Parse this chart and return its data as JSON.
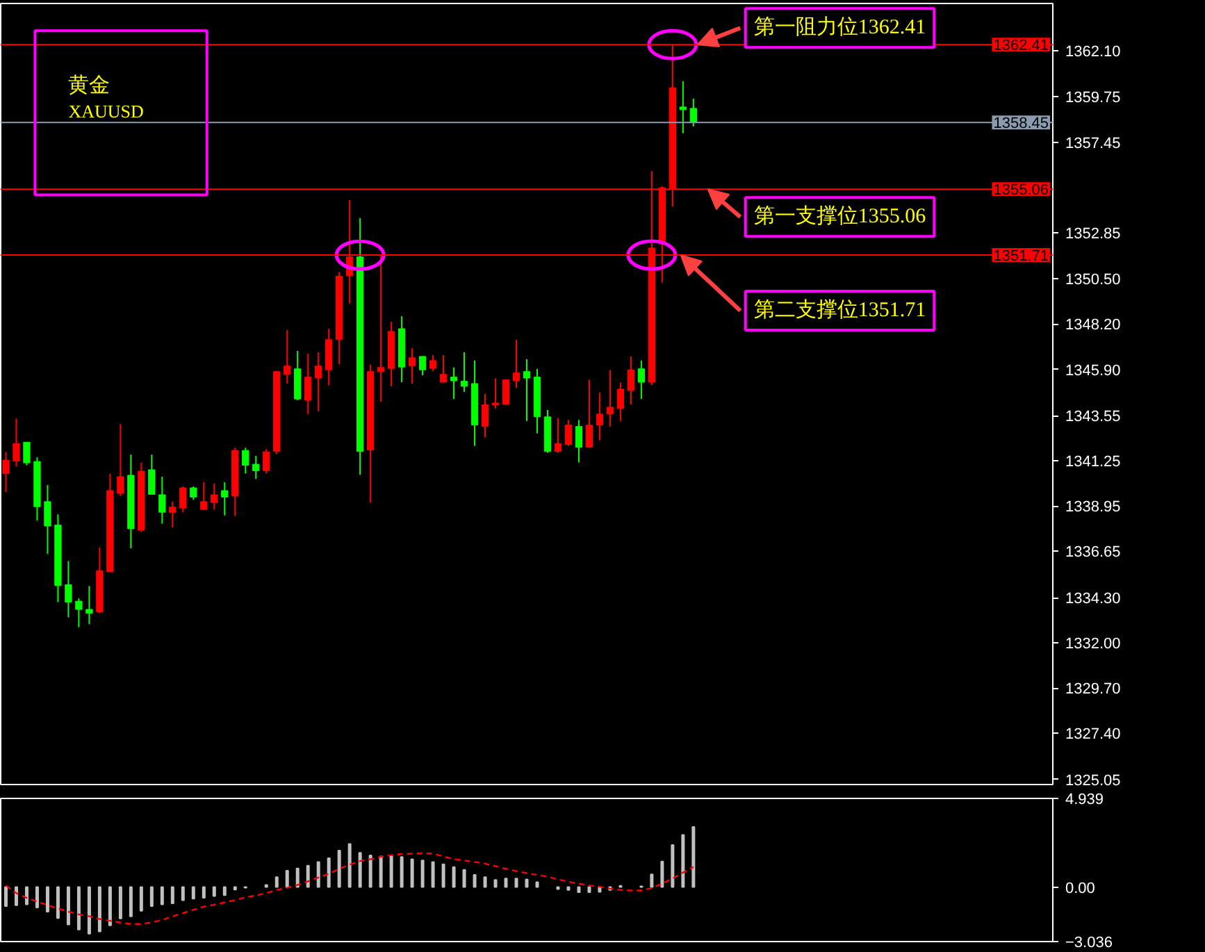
{
  "chart_data": [
    {
      "type": "candlestick",
      "title": "黄金",
      "subtitle": "XAUUSD",
      "categories": [
        null,
        null,
        null,
        null,
        null,
        null,
        null,
        null,
        null,
        null,
        null,
        null,
        null,
        null,
        null,
        null,
        null,
        null,
        null,
        null,
        null,
        null,
        null,
        null,
        null,
        null,
        null,
        null,
        null,
        null,
        null,
        null,
        null,
        null,
        null,
        null,
        null,
        null,
        null,
        null,
        null,
        null,
        null,
        null,
        null,
        null,
        null,
        null,
        null,
        null,
        null,
        null,
        null,
        null,
        null,
        null,
        null,
        null,
        null,
        null,
        null,
        null,
        null,
        null,
        null,
        null,
        null,
        null,
        null,
        null,
        null,
        null,
        null,
        null,
        null,
        null,
        null,
        null,
        null,
        null,
        null,
        null,
        null,
        null,
        null,
        null,
        null,
        null,
        null,
        null,
        null,
        null,
        null,
        null,
        null,
        null,
        null,
        null,
        null,
        null,
        null
      ],
      "ohlc": [
        [
          1340.61,
          1341.71,
          1339.67,
          1341.29
        ],
        [
          1341.24,
          1343.4,
          1340.96,
          1342.13
        ],
        [
          1342.2,
          1342.2,
          1341.03,
          1341.15
        ],
        [
          1341.22,
          1341.43,
          1338.22,
          1338.92
        ],
        [
          1339.18,
          1340.02,
          1336.53,
          1337.94
        ],
        [
          1337.99,
          1338.53,
          1334.07,
          1334.91
        ],
        [
          1334.96,
          1336.16,
          1333.3,
          1334.07
        ],
        [
          1334.12,
          1334.26,
          1332.8,
          1333.7
        ],
        [
          1333.7,
          1334.89,
          1332.95,
          1333.51
        ],
        [
          1333.58,
          1336.86,
          1333.51,
          1335.67
        ],
        [
          1335.62,
          1340.59,
          1335.62,
          1339.74
        ],
        [
          1339.6,
          1343.12,
          1339.46,
          1340.45
        ],
        [
          1340.52,
          1341.57,
          1336.81,
          1337.8
        ],
        [
          1337.73,
          1341.15,
          1337.63,
          1340.73
        ],
        [
          1340.8,
          1341.57,
          1339.55,
          1339.55
        ],
        [
          1339.53,
          1340.45,
          1338.06,
          1338.64
        ],
        [
          1338.62,
          1339.18,
          1337.87,
          1338.9
        ],
        [
          1338.85,
          1339.95,
          1338.64,
          1339.88
        ],
        [
          1339.88,
          1339.95,
          1339.27,
          1339.41
        ],
        [
          1338.78,
          1340.17,
          1338.78,
          1339.18
        ],
        [
          1339.13,
          1340.09,
          1338.78,
          1339.53
        ],
        [
          1339.74,
          1340.17,
          1338.48,
          1339.41
        ],
        [
          1339.46,
          1341.92,
          1338.45,
          1341.78
        ],
        [
          1341.78,
          1341.92,
          1340.61,
          1341.03
        ],
        [
          1341.08,
          1341.5,
          1340.33,
          1340.75
        ],
        [
          1340.75,
          1341.85,
          1340.61,
          1341.71
        ],
        [
          1341.73,
          1345.79,
          1341.59,
          1345.79
        ],
        [
          1345.65,
          1347.9,
          1345.18,
          1346.07
        ],
        [
          1345.93,
          1346.84,
          1344.33,
          1344.4
        ],
        [
          1344.33,
          1346.7,
          1343.63,
          1345.51
        ],
        [
          1345.46,
          1346.77,
          1343.77,
          1346.07
        ],
        [
          1345.88,
          1347.97,
          1345.09,
          1347.41
        ],
        [
          1347.43,
          1350.85,
          1346.16,
          1350.64
        ],
        [
          1350.66,
          1354.51,
          1349.25,
          1351.62
        ],
        [
          1351.62,
          1353.59,
          1340.54,
          1341.73
        ],
        [
          1341.8,
          1346.14,
          1339.13,
          1345.79
        ],
        [
          1345.79,
          1351.69,
          1344.26,
          1346.0
        ],
        [
          1345.95,
          1348.32,
          1345.04,
          1347.83
        ],
        [
          1347.97,
          1348.6,
          1345.25,
          1346.02
        ],
        [
          1346.09,
          1346.98,
          1345.18,
          1346.49
        ],
        [
          1346.56,
          1346.56,
          1345.6,
          1345.88
        ],
        [
          1345.95,
          1346.63,
          1345.81,
          1346.35
        ],
        [
          1345.25,
          1346.63,
          1345.25,
          1345.65
        ],
        [
          1345.51,
          1346.0,
          1344.4,
          1345.32
        ],
        [
          1345.3,
          1346.77,
          1344.76,
          1345.04
        ],
        [
          1345.18,
          1346.35,
          1342.01,
          1343.07
        ],
        [
          1343.0,
          1344.66,
          1342.44,
          1344.1
        ],
        [
          1344.1,
          1345.44,
          1343.91,
          1344.19
        ],
        [
          1344.12,
          1345.37,
          1344.12,
          1345.37
        ],
        [
          1345.32,
          1347.41,
          1344.97,
          1345.72
        ],
        [
          1345.79,
          1346.42,
          1343.28,
          1345.46
        ],
        [
          1345.51,
          1345.93,
          1342.65,
          1343.49
        ],
        [
          1343.49,
          1343.84,
          1341.66,
          1341.73
        ],
        [
          1341.73,
          1343.42,
          1341.66,
          1342.13
        ],
        [
          1342.08,
          1343.33,
          1342.01,
          1343.07
        ],
        [
          1343.0,
          1343.33,
          1341.17,
          1341.94
        ],
        [
          1341.94,
          1345.37,
          1341.94,
          1343.07
        ],
        [
          1343.07,
          1344.73,
          1342.3,
          1343.63
        ],
        [
          1343.63,
          1345.86,
          1343.0,
          1343.98
        ],
        [
          1343.91,
          1345.23,
          1343.28,
          1344.9
        ],
        [
          1344.83,
          1346.56,
          1344.12,
          1345.88
        ],
        [
          1345.93,
          1346.35,
          1344.4,
          1345.25
        ],
        [
          1345.25,
          1355.98,
          1345.11,
          1352.07
        ],
        [
          1352.28,
          1355.21,
          1350.31,
          1355.14
        ],
        [
          1355.06,
          1362.41,
          1354.18,
          1360.22
        ],
        [
          1359.24,
          1360.55,
          1357.9,
          1359.1
        ],
        [
          1359.17,
          1359.66,
          1358.25,
          1358.45
        ],
        null,
        null,
        null,
        null,
        null,
        null,
        null,
        null,
        null,
        null,
        null,
        null,
        null,
        null,
        null,
        null,
        null,
        null,
        null,
        null,
        null,
        null,
        null,
        null,
        null,
        null,
        null,
        null,
        null,
        null,
        null,
        null,
        null,
        null
      ],
      "colors": [
        "#ff0000",
        "#ff0000",
        "#00ff00",
        "#00ff00",
        "#00ff00",
        "#00ff00",
        "#00ff00",
        "#00ff00",
        "#00ff00",
        "#ff0000",
        "#ff0000",
        "#ff0000",
        "#00ff00",
        "#ff0000",
        "#00ff00",
        "#00ff00",
        "#ff0000",
        "#ff0000",
        "#00ff00",
        "#ff0000",
        "#ff0000",
        "#00ff00",
        "#ff0000",
        "#00ff00",
        "#00ff00",
        "#ff0000",
        "#ff0000",
        "#ff0000",
        "#00ff00",
        "#ff0000",
        "#ff0000",
        "#ff0000",
        "#ff0000",
        "#ff0000",
        "#00ff00",
        "#ff0000",
        "#ff0000",
        "#ff0000",
        "#00ff00",
        "#ff0000",
        "#00ff00",
        "#ff0000",
        "#ff0000",
        "#00ff00",
        "#00ff00",
        "#00ff00",
        "#ff0000",
        "#ff0000",
        "#ff0000",
        "#ff0000",
        "#00ff00",
        "#00ff00",
        "#00ff00",
        "#ff0000",
        "#ff0000",
        "#00ff00",
        "#ff0000",
        "#ff0000",
        "#ff0000",
        "#ff0000",
        "#ff0000",
        "#00ff00",
        "#ff0000",
        "#ff0000",
        "#ff0000",
        "#00ff00",
        "#00ff00",
        null,
        null,
        null,
        null,
        null,
        null,
        null,
        null,
        null,
        null,
        null,
        null,
        null,
        null,
        null,
        null,
        null,
        null,
        null,
        null,
        null,
        null,
        null,
        null,
        null,
        null,
        null,
        null,
        null,
        null,
        null,
        null,
        null,
        null
      ],
      "ylim": [
        1324.8,
        1364.5
      ],
      "yticks": [
        {
          "value": 1362.1,
          "label": "1362.10"
        },
        {
          "value": 1359.75,
          "label": "1359.75"
        },
        {
          "value": 1357.45,
          "label": "1357.45"
        },
        {
          "value": 1352.85,
          "label": "1352.85"
        },
        {
          "value": 1350.5,
          "label": "1350.50"
        },
        {
          "value": 1348.2,
          "label": "1348.20"
        },
        {
          "value": 1345.9,
          "label": "1345.90"
        },
        {
          "value": 1343.55,
          "label": "1343.55"
        },
        {
          "value": 1341.25,
          "label": "1341.25"
        },
        {
          "value": 1338.95,
          "label": "1338.95"
        },
        {
          "value": 1336.65,
          "label": "1336.65"
        },
        {
          "value": 1334.3,
          "label": "1334.30"
        },
        {
          "value": 1332.0,
          "label": "1332.00"
        },
        {
          "value": 1329.7,
          "label": "1329.70"
        },
        {
          "value": 1327.4,
          "label": "1327.40"
        },
        {
          "value": 1325.05,
          "label": "1325.05"
        }
      ],
      "ref_lines": [
        {
          "axis": "y",
          "value": 1362.41,
          "label": "1362.41",
          "color": "#ff0000"
        },
        {
          "axis": "y",
          "value": 1355.06,
          "label": "1355.06",
          "color": "#ff0000"
        },
        {
          "axis": "y",
          "value": 1351.71,
          "label": "1351.71",
          "color": "#ff0000"
        },
        {
          "axis": "y",
          "value": 1358.45,
          "label": "1358.45",
          "color": "#8c9cb0"
        }
      ],
      "annotations": [
        {
          "text": "第一阻力位1362.41",
          "y": 1362.41
        },
        {
          "text": "第一支撑位1355.06",
          "y": 1355.06
        },
        {
          "text": "第二支撑位1351.71",
          "y": 1351.71
        }
      ],
      "tick_labels": "y"
    },
    {
      "type": "bar",
      "categories": [
        null,
        null,
        null,
        null,
        null,
        null,
        null,
        null,
        null,
        null,
        null,
        null,
        null,
        null,
        null,
        null,
        null,
        null,
        null,
        null,
        null,
        null,
        null,
        null,
        null,
        null,
        null,
        null,
        null,
        null,
        null,
        null,
        null,
        null,
        null,
        null,
        null,
        null,
        null,
        null,
        null,
        null,
        null,
        null,
        null,
        null,
        null,
        null,
        null,
        null,
        null,
        null,
        null,
        null,
        null,
        null,
        null,
        null,
        null,
        null,
        null,
        null,
        null,
        null,
        null,
        null,
        null,
        null,
        null,
        null,
        null,
        null,
        null,
        null,
        null,
        null,
        null,
        null,
        null,
        null,
        null,
        null,
        null,
        null,
        null,
        null,
        null,
        null,
        null,
        null,
        null,
        null,
        null,
        null,
        null,
        null,
        null,
        null,
        null,
        null,
        null
      ],
      "series": [
        {
          "type": "bar",
          "color": "#c0c0c0",
          "values": [
            -1.06,
            -1.01,
            -0.96,
            -1.14,
            -1.37,
            -1.73,
            -2.09,
            -2.37,
            -2.6,
            -2.47,
            -2.14,
            -1.75,
            -1.63,
            -1.32,
            -1.06,
            -0.96,
            -0.91,
            -0.73,
            -0.65,
            -0.6,
            -0.5,
            -0.45,
            -0.14,
            -0.04,
            null,
            0.12,
            0.55,
            0.91,
            1.04,
            1.19,
            1.4,
            1.61,
            2.04,
            2.4,
            1.91,
            1.76,
            1.71,
            1.73,
            1.68,
            1.55,
            1.48,
            1.4,
            1.27,
            1.12,
            0.96,
            0.68,
            0.55,
            0.4,
            0.48,
            0.48,
            0.43,
            0.27,
            null,
            -0.11,
            -0.16,
            -0.29,
            -0.29,
            -0.27,
            -0.16,
            0.07,
            null,
            0.04,
            0.71,
            1.43,
            2.35,
            2.91,
            3.35,
            null,
            null,
            null,
            null,
            null,
            null,
            null,
            null,
            null,
            null,
            null,
            null,
            null,
            null,
            null,
            null,
            null,
            null,
            null,
            null,
            null,
            null,
            null,
            null,
            null,
            null,
            null,
            null,
            null,
            null,
            null,
            null,
            null,
            null
          ]
        },
        {
          "type": "line",
          "color": "#ff0000",
          "values": [
            0.09,
            -0.34,
            -0.6,
            -0.81,
            -1.01,
            -1.19,
            -1.37,
            -1.52,
            -1.63,
            -1.78,
            -1.88,
            -1.98,
            -2.06,
            -2.06,
            -1.96,
            -1.83,
            -1.63,
            -1.45,
            -1.27,
            -1.09,
            -0.98,
            -0.86,
            -0.73,
            -0.57,
            -0.47,
            -0.34,
            -0.16,
            -0.04,
            0.12,
            0.32,
            0.53,
            0.73,
            1.02,
            1.25,
            1.45,
            1.55,
            1.68,
            1.78,
            1.84,
            1.86,
            1.89,
            1.86,
            1.71,
            1.55,
            1.48,
            1.4,
            1.3,
            1.17,
            1.02,
            0.89,
            0.78,
            0.68,
            0.58,
            0.43,
            0.3,
            0.19,
            0.09,
            0.02,
            -0.09,
            -0.16,
            -0.19,
            -0.19,
            -0.06,
            0.19,
            0.48,
            0.81,
            1.12,
            null,
            null,
            null,
            null,
            null,
            null,
            null,
            null,
            null,
            null,
            null,
            null,
            null,
            null,
            null,
            null,
            null,
            null,
            null,
            null,
            null,
            null,
            null,
            null,
            null,
            null,
            null,
            null,
            null,
            null,
            null,
            null,
            null,
            null
          ]
        }
      ],
      "line_style": "dashed",
      "ylim": [
        -3.036,
        4.939
      ],
      "yticks": [
        4.939,
        {
          "value": 0,
          "label": "0.00"
        },
        -3.036
      ],
      "tick_labels": "y"
    }
  ]
}
